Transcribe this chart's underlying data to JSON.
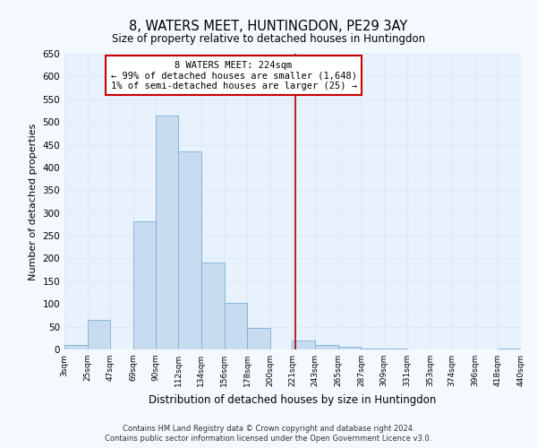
{
  "title": "8, WATERS MEET, HUNTINGDON, PE29 3AY",
  "subtitle": "Size of property relative to detached houses in Huntingdon",
  "xlabel": "Distribution of detached houses by size in Huntingdon",
  "ylabel": "Number of detached properties",
  "bin_labels": [
    "3sqm",
    "25sqm",
    "47sqm",
    "69sqm",
    "90sqm",
    "112sqm",
    "134sqm",
    "156sqm",
    "178sqm",
    "200sqm",
    "221sqm",
    "243sqm",
    "265sqm",
    "287sqm",
    "309sqm",
    "331sqm",
    "353sqm",
    "374sqm",
    "396sqm",
    "418sqm",
    "440sqm"
  ],
  "bin_edges": [
    3,
    25,
    47,
    69,
    90,
    112,
    134,
    156,
    178,
    200,
    221,
    243,
    265,
    287,
    309,
    331,
    353,
    374,
    396,
    418,
    440
  ],
  "bar_heights": [
    10,
    65,
    0,
    282,
    515,
    435,
    192,
    102,
    47,
    0,
    20,
    10,
    5,
    2,
    1,
    0,
    0,
    0,
    0,
    2
  ],
  "bar_color": "#c8dcf0",
  "bar_edge_color": "#7aaed6",
  "property_value": 224,
  "vline_color": "#aa0000",
  "annotation_text": "8 WATERS MEET: 224sqm\n← 99% of detached houses are smaller (1,648)\n1% of semi-detached houses are larger (25) →",
  "annotation_box_color": "#ffffff",
  "annotation_box_edge": "#cc0000",
  "ylim": [
    0,
    650
  ],
  "yticks": [
    0,
    50,
    100,
    150,
    200,
    250,
    300,
    350,
    400,
    450,
    500,
    550,
    600,
    650
  ],
  "grid_color": "#dce8f4",
  "bg_color": "#e8f2fc",
  "fig_bg_color": "#f4f9ff",
  "footer_line1": "Contains HM Land Registry data © Crown copyright and database right 2024.",
  "footer_line2": "Contains public sector information licensed under the Open Government Licence v3.0."
}
